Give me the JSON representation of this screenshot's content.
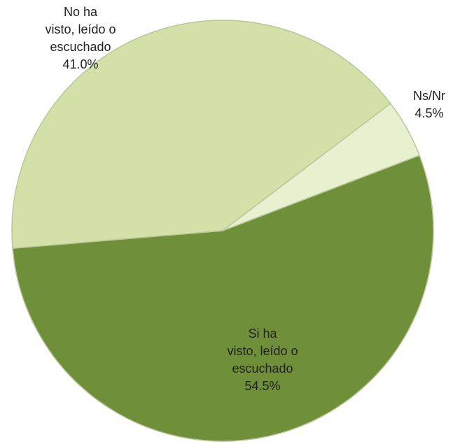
{
  "chart_data": {
    "type": "pie",
    "categories": [
      "Si ha\nvisto, leído o\nescuchado",
      "No  ha\nvisto, leído o\nescuchado",
      "Ns/Nr"
    ],
    "values": [
      54.5,
      41.0,
      4.5
    ],
    "value_labels": [
      "54.5%",
      "41.0%",
      "4.5%"
    ],
    "colors": [
      "#6f8f38",
      "#d3e1a9",
      "#e7f0cf"
    ]
  }
}
